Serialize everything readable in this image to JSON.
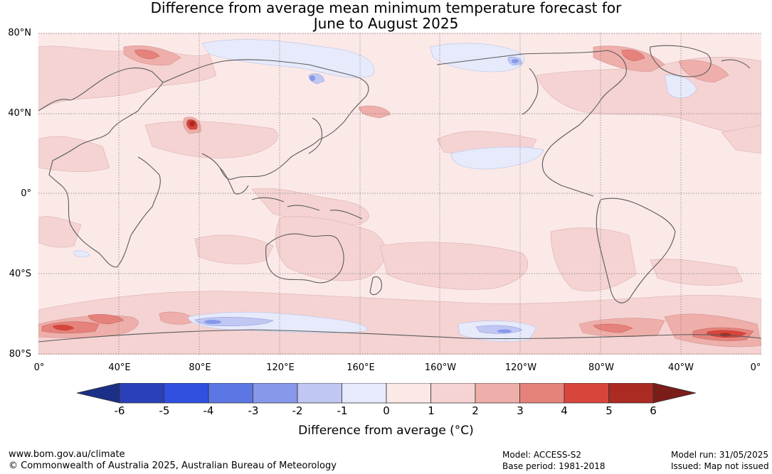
{
  "title": {
    "line1": "Difference from average mean minimum temperature forecast for",
    "line2": "June to August 2025"
  },
  "map": {
    "lat_labels": [
      "80°N",
      "40°N",
      "0°",
      "40°S",
      "80°S"
    ],
    "lon_labels": [
      "0°",
      "40°E",
      "80°E",
      "120°E",
      "160°E",
      "160°W",
      "120°W",
      "80°W",
      "40°W",
      "0°"
    ],
    "ocean_colour": "#fbe9e8",
    "land_outline_colour": "#5a5a5a",
    "gridline_style": "dotted"
  },
  "colorbar": {
    "ticks": [
      "-6",
      "-5",
      "-4",
      "-3",
      "-2",
      "-1",
      "0",
      "1",
      "2",
      "3",
      "4",
      "5",
      "6"
    ],
    "colours": [
      "#1c2f86",
      "#2a40b8",
      "#3050e0",
      "#5c77e3",
      "#8797ea",
      "#bfc7f2",
      "#e6eafb",
      "#fbe9e8",
      "#f5d3d3",
      "#eeafab",
      "#e6827c",
      "#d8463b",
      "#ab2a22",
      "#7a1c18"
    ],
    "label": "Difference from average (°C)"
  },
  "footer": {
    "url": "www.bom.gov.au/climate",
    "copyright": "© Commonwealth of Australia 2025, Australian Bureau of Meteorology",
    "model": "Model: ACCESS-S2",
    "base_period": "Base period: 1981-2018",
    "model_run": "Model run: 31/05/2025",
    "issued": "Issued: Map not issued"
  }
}
